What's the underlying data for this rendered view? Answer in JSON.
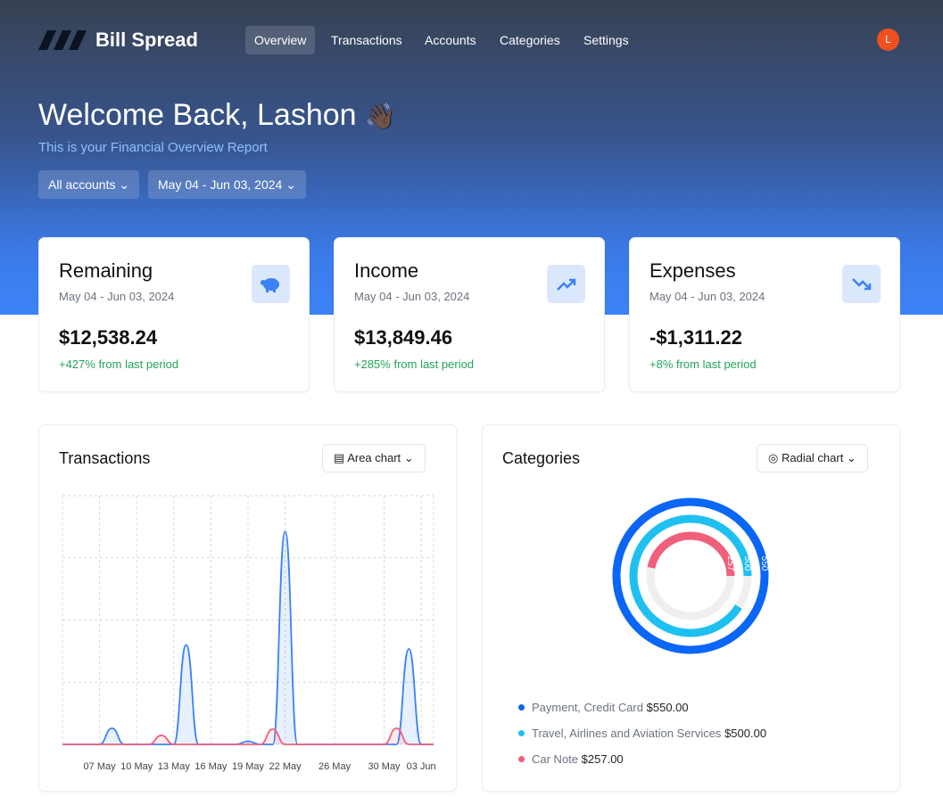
{
  "nav": {
    "brand": "Bill Spread",
    "items": [
      "Overview",
      "Transactions",
      "Accounts",
      "Categories",
      "Settings"
    ],
    "avatar": "L"
  },
  "header": {
    "title": "Welcome Back, Lashon",
    "emoji": "👋🏿",
    "subtitle": "This is your Financial Overview Report",
    "filters": [
      "All accounts",
      "May 04 - Jun 03, 2024"
    ]
  },
  "cards": [
    {
      "title": "Remaining",
      "period": "May 04 - Jun 03, 2024",
      "amount": "$12,538.24",
      "change": "+427% from last period"
    },
    {
      "title": "Income",
      "period": "May 04 - Jun 03, 2024",
      "amount": "$13,849.46",
      "change": "+285% from last period"
    },
    {
      "title": "Expenses",
      "period": "May 04 - Jun 03, 2024",
      "amount": "-$1,311.22",
      "change": "+8% from last period"
    }
  ],
  "transactions": {
    "title": "Transactions",
    "chart_button": "Area chart",
    "chart": {
      "type": "area",
      "categories": [
        null,
        null,
        null,
        "07 May",
        null,
        null,
        "10 May",
        null,
        null,
        "13 May",
        null,
        null,
        "16 May",
        null,
        null,
        "19 May",
        null,
        null,
        "22 May",
        null,
        null,
        null,
        "26 May",
        null,
        null,
        null,
        "30 May",
        null,
        null,
        "03 Jun",
        null
      ],
      "series": [
        {
          "color": "#3b82f6",
          "values": [
            0,
            0,
            0,
            0,
            520,
            0,
            0,
            0,
            0,
            0,
            3200,
            0,
            0,
            0,
            0,
            100,
            0,
            0,
            6850,
            0,
            0,
            0,
            0,
            0,
            0,
            0,
            0,
            0,
            3070,
            0,
            0
          ]
        },
        {
          "color": "#f0607a",
          "values": [
            0,
            0,
            0,
            0,
            0,
            0,
            0,
            0,
            290,
            0,
            0,
            0,
            0,
            0,
            0,
            0,
            0,
            490,
            0,
            0,
            0,
            0,
            0,
            0,
            0,
            0,
            0,
            520,
            0,
            0,
            0
          ]
        }
      ],
      "ylim": [
        0,
        8000
      ],
      "grid": true
    }
  },
  "categories": {
    "title": "Categories",
    "chart_button": "Radial chart",
    "chart": {
      "type": "radial",
      "items": [
        {
          "name": "Payment, Credit Card",
          "value": 550,
          "value_label": "$550.00",
          "color": "#0a66f5"
        },
        {
          "name": "Travel, Airlines and Aviation Services",
          "value": 500,
          "value_label": "$500.00",
          "color": "#1ec0f2"
        },
        {
          "name": "Car Note",
          "value": 257,
          "value_label": "$257.00",
          "color": "#f0607a"
        }
      ]
    }
  }
}
